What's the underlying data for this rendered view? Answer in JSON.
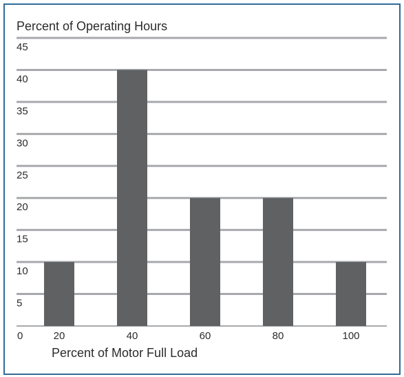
{
  "chart_data": {
    "type": "bar",
    "title": "",
    "ylabel": "Percent of Operating Hours",
    "xlabel": "Percent of Motor Full Load",
    "categories": [
      "20",
      "40",
      "60",
      "80",
      "100"
    ],
    "values": [
      10,
      40,
      20,
      20,
      10
    ],
    "ylim": [
      0,
      45
    ],
    "yticks": [
      "0",
      "5",
      "10",
      "15",
      "20",
      "25",
      "30",
      "35",
      "40",
      "45"
    ],
    "grid": true,
    "colors": {
      "bar": "#5f6163",
      "grid": "#a7a9ac",
      "frame": "#2f6a98"
    }
  }
}
